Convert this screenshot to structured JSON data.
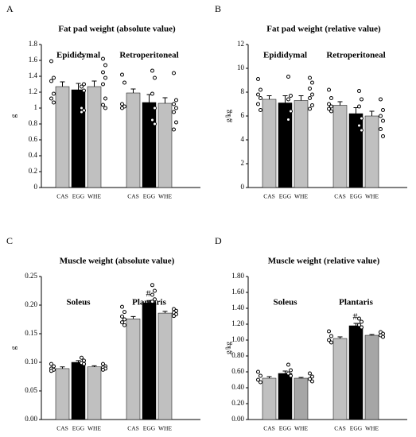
{
  "chart_data": [
    {
      "type": "bar",
      "panel": "A",
      "title": "Fat pad weight (absolute value)",
      "ylabel": "g",
      "groups": [
        "Epididymal",
        "Retroperitoneal"
      ],
      "categories": [
        "CAS",
        "EGG",
        "WHE"
      ],
      "colors": [
        "#c0c0c0",
        "#000000",
        "#c0c0c0"
      ],
      "values": [
        [
          1.27,
          1.23,
          1.27
        ],
        [
          1.19,
          1.07,
          1.06
        ]
      ],
      "errors": [
        [
          0.06,
          0.08,
          0.07
        ],
        [
          0.05,
          0.1,
          0.07
        ]
      ],
      "points": [
        [
          [
            1.59,
            1.38,
            1.34,
            1.18,
            1.12,
            1.07
          ],
          [
            1.66,
            1.3,
            1.27,
            1.22,
            1.0,
            0.97,
            0.95
          ],
          [
            1.62,
            1.54,
            1.45,
            1.38,
            1.3,
            1.12,
            1.04,
            1.0
          ]
        ],
        [
          [
            1.42,
            1.32,
            1.05,
            1.02,
            1.0
          ],
          [
            1.47,
            1.38,
            1.18,
            1.0,
            0.85,
            0.8
          ],
          [
            1.44,
            1.1,
            1.05,
            1.0,
            0.95,
            0.82,
            0.73
          ]
        ]
      ],
      "ylim": [
        0,
        1.8
      ],
      "yticks": [
        0,
        0.2,
        0.4,
        0.6,
        0.8,
        1,
        1.2,
        1.4,
        1.6,
        1.8
      ]
    },
    {
      "type": "bar",
      "panel": "B",
      "title": "Fat pad weight (relative  value)",
      "ylabel": "g/kg",
      "groups": [
        "Epididymal",
        "Retroperitoneal"
      ],
      "categories": [
        "CAS",
        "EGG",
        "WHE"
      ],
      "colors": [
        "#c0c0c0",
        "#000000",
        "#c0c0c0"
      ],
      "values": [
        [
          7.4,
          7.1,
          7.3
        ],
        [
          6.9,
          6.2,
          6.0
        ]
      ],
      "errors": [
        [
          0.3,
          0.6,
          0.4
        ],
        [
          0.3,
          0.5,
          0.4
        ]
      ],
      "points": [
        [
          [
            9.1,
            8.2,
            7.8,
            7.5,
            7.0,
            6.5
          ],
          [
            9.3,
            7.7,
            7.4,
            6.4,
            5.7
          ],
          [
            9.2,
            8.8,
            8.3,
            7.8,
            7.5,
            6.9,
            6.6
          ]
        ],
        [
          [
            8.2,
            7.5,
            7.0,
            6.8,
            6.6,
            6.4
          ],
          [
            8.1,
            7.4,
            6.8,
            5.8,
            5.2,
            4.8
          ],
          [
            7.4,
            6.5,
            6.0,
            5.6,
            4.9,
            4.3
          ]
        ]
      ],
      "ylim": [
        0,
        12
      ],
      "yticks": [
        0,
        2,
        4,
        6,
        8,
        10,
        12
      ]
    },
    {
      "type": "bar",
      "panel": "C",
      "title": "Muscle weight (absolute value)",
      "ylabel": "g",
      "groups": [
        "Soleus",
        "Plantaris"
      ],
      "categories": [
        "CAS",
        "EGG",
        "WHE"
      ],
      "colors": [
        "#c0c0c0",
        "#000000",
        "#c0c0c0"
      ],
      "values": [
        [
          0.089,
          0.1,
          0.092
        ],
        [
          0.176,
          0.204,
          0.186
        ]
      ],
      "errors": [
        [
          0.003,
          0.003,
          0.002
        ],
        [
          0.004,
          0.004,
          0.003
        ]
      ],
      "points": [
        [
          [
            0.097,
            0.093,
            0.089,
            0.087,
            0.085
          ],
          [
            0.108,
            0.103,
            0.099,
            0.097
          ],
          [
            0.097,
            0.093,
            0.091,
            0.089,
            0.087
          ]
        ],
        [
          [
            0.197,
            0.188,
            0.18,
            0.175,
            0.17,
            0.165
          ],
          [
            0.235,
            0.225,
            0.218,
            0.21,
            0.206
          ],
          [
            0.193,
            0.19,
            0.187,
            0.184,
            0.181
          ]
        ]
      ],
      "annotation": "#",
      "ylim": [
        0,
        0.25
      ],
      "yticks": [
        {
          "value": 0,
          "label": "0.00"
        },
        {
          "value": 0.05,
          "label": "0.05"
        },
        {
          "value": 0.1,
          "label": "0.10"
        },
        {
          "value": 0.15,
          "label": "0.15"
        },
        {
          "value": 0.2,
          "label": "0.20"
        },
        {
          "value": 0.25,
          "label": "0.25"
        }
      ]
    },
    {
      "type": "bar",
      "panel": "D",
      "title": "Muscle weight (relative value)",
      "ylabel": "g/kg",
      "groups": [
        "Soleus",
        "Plantaris"
      ],
      "categories": [
        "CAS",
        "EGG",
        "WHE"
      ],
      "colors": [
        "#c0c0c0",
        "#000000",
        "#a6a6a6"
      ],
      "values": [
        [
          0.52,
          0.58,
          0.52
        ],
        [
          1.02,
          1.18,
          1.06
        ]
      ],
      "errors": [
        [
          0.02,
          0.03,
          0.01
        ],
        [
          0.02,
          0.03,
          0.01
        ]
      ],
      "points": [
        [
          [
            0.6,
            0.55,
            0.5,
            0.47
          ],
          [
            0.69,
            0.62,
            0.58,
            0.55
          ],
          [
            0.58,
            0.54,
            0.51,
            0.48
          ]
        ],
        [
          [
            1.11,
            1.05,
            1.0,
            0.97
          ],
          [
            1.27,
            1.23,
            1.19,
            1.16
          ],
          [
            1.1,
            1.08,
            1.06,
            1.04
          ]
        ]
      ],
      "annotation": "#",
      "ylim": [
        0,
        1.8
      ],
      "yticks": [
        {
          "value": 0,
          "label": "0.00"
        },
        {
          "value": 0.2,
          "label": "0.20"
        },
        {
          "value": 0.4,
          "label": "0.40"
        },
        {
          "value": 0.6,
          "label": "0.60"
        },
        {
          "value": 0.8,
          "label": "0.80"
        },
        {
          "value": 1,
          "label": "1.00"
        },
        {
          "value": 1.2,
          "label": "1.20"
        },
        {
          "value": 1.4,
          "label": "1.40"
        },
        {
          "value": 1.6,
          "label": "1.60"
        },
        {
          "value": 1.8,
          "label": "1.80"
        }
      ]
    }
  ]
}
